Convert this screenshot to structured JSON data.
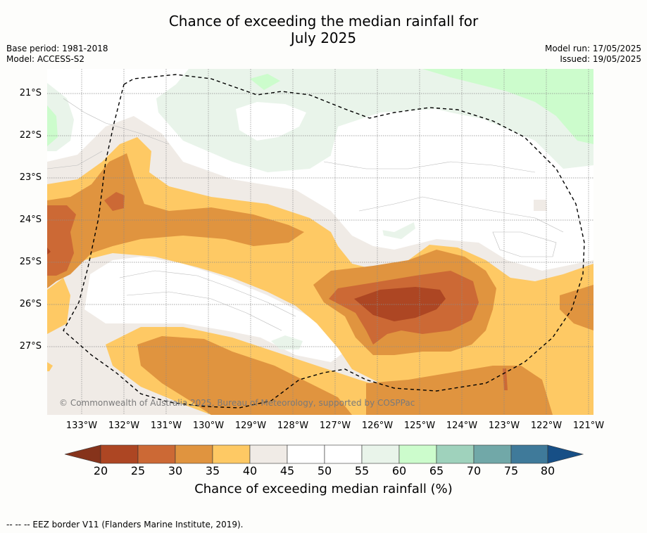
{
  "title_line1": "Chance of exceeding the median rainfall for",
  "title_line2": "July 2025",
  "meta_left": {
    "base_period": "Base period: 1981-2018",
    "model": "Model: ACCESS-S2"
  },
  "meta_right": {
    "model_run": "Model run: 17/05/2025",
    "issued": "Issued: 19/05/2025"
  },
  "lat_labels": [
    "21°S",
    "22°S",
    "23°S",
    "24°S",
    "25°S",
    "26°S",
    "27°S"
  ],
  "lon_labels": [
    "133°W",
    "132°W",
    "131°W",
    "130°W",
    "129°W",
    "128°W",
    "127°W",
    "126°W",
    "125°W",
    "124°W",
    "123°W",
    "122°W",
    "121°W"
  ],
  "copyright": "© Commonwealth of Australia 2025, Bureau of Meteorology, supported by COSPPac",
  "colorbar": {
    "ticks": [
      "20",
      "25",
      "30",
      "35",
      "40",
      "45",
      "50",
      "55",
      "60",
      "65",
      "70",
      "75",
      "80"
    ],
    "colors": [
      "#ad4623",
      "#cc6935",
      "#e0943f",
      "#fec964",
      "#f0ebe6",
      "#ffffff",
      "#ffffff",
      "#e9f4ea",
      "#ccfccc",
      "#9fd2bc",
      "#71a8a8",
      "#3f7a9a"
    ],
    "under_color": "#86331b",
    "over_color": "#174f86",
    "title": "Chance of exceeding median rainfall (%)"
  },
  "footer": "--  --  -- EEZ border V11 (Flanders Marine Institute, 2019)."
}
